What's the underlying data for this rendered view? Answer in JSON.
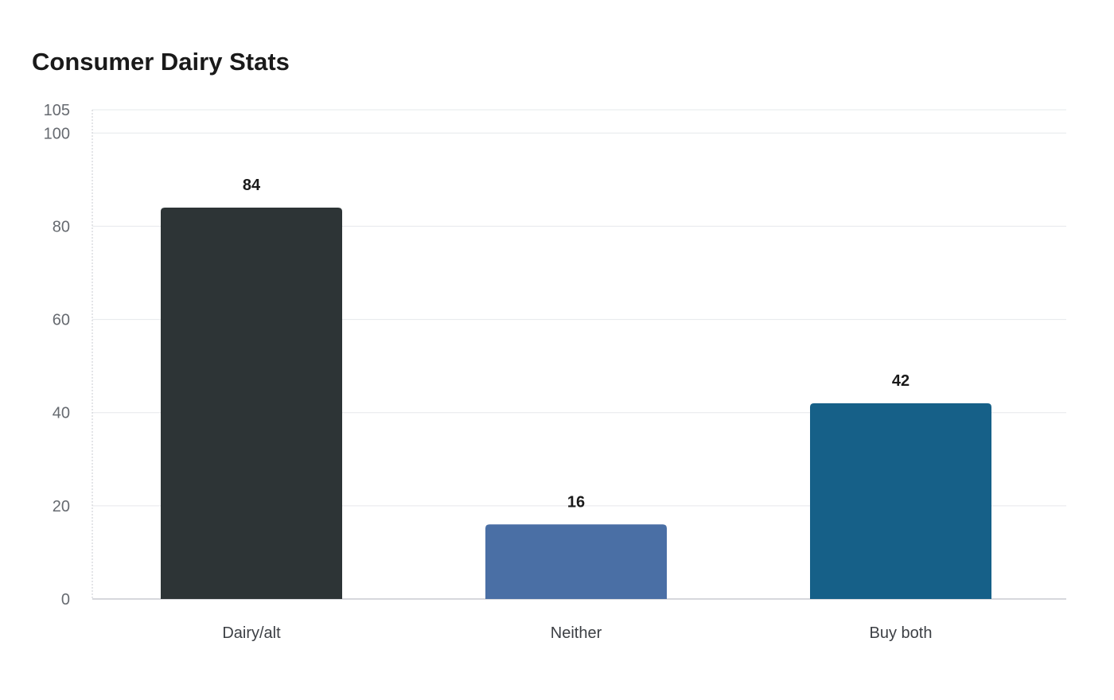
{
  "chart_data": {
    "type": "bar",
    "title": "Consumer Dairy Stats",
    "categories": [
      "Dairy/alt",
      "Neither",
      "Buy both"
    ],
    "values": [
      84,
      16,
      42
    ],
    "colors": [
      "#2d3436",
      "#4a6fa5",
      "#166088"
    ],
    "ylim": [
      0,
      105
    ],
    "yticks": [
      0,
      20,
      40,
      60,
      80,
      100,
      105
    ],
    "xlabel": "",
    "ylabel": "",
    "grid": true,
    "legend": "none",
    "data_labels": true
  }
}
